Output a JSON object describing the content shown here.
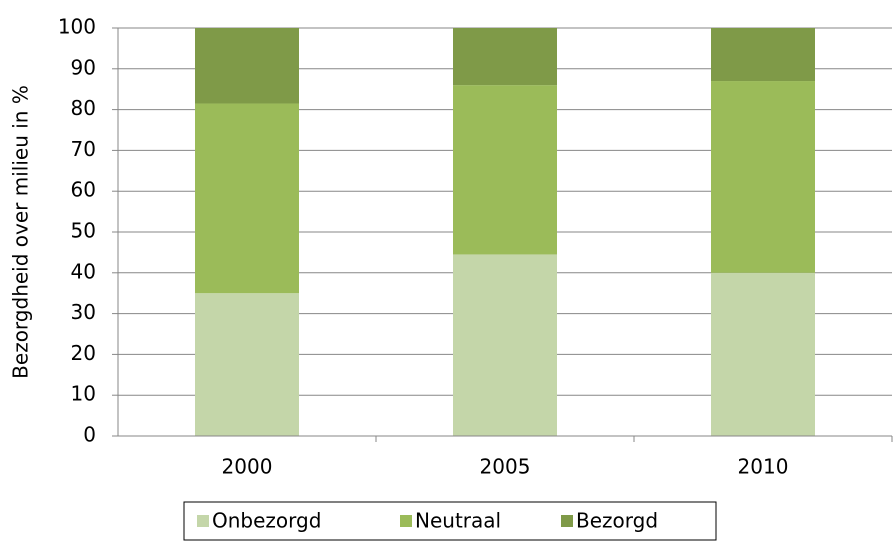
{
  "chart_data": {
    "type": "stacked_bar",
    "y_label": "Bezorgdheid over milieu in %",
    "categories": [
      "2000",
      "2005",
      "2010"
    ],
    "series": [
      {
        "name": "Onbezorgd",
        "color": "#c4d6a9",
        "values": [
          35,
          44.5,
          40
        ]
      },
      {
        "name": "Neutraal",
        "color": "#9bbb59",
        "values": [
          46.5,
          41.5,
          47
        ]
      },
      {
        "name": "Bezorgd",
        "color": "#7f9a48",
        "values": [
          18.5,
          14,
          13
        ]
      }
    ],
    "ylim": [
      0,
      100
    ],
    "yticks": [
      0,
      10,
      20,
      30,
      40,
      50,
      60,
      70,
      80,
      90,
      100
    ],
    "grid": true,
    "legend": "bottom"
  }
}
